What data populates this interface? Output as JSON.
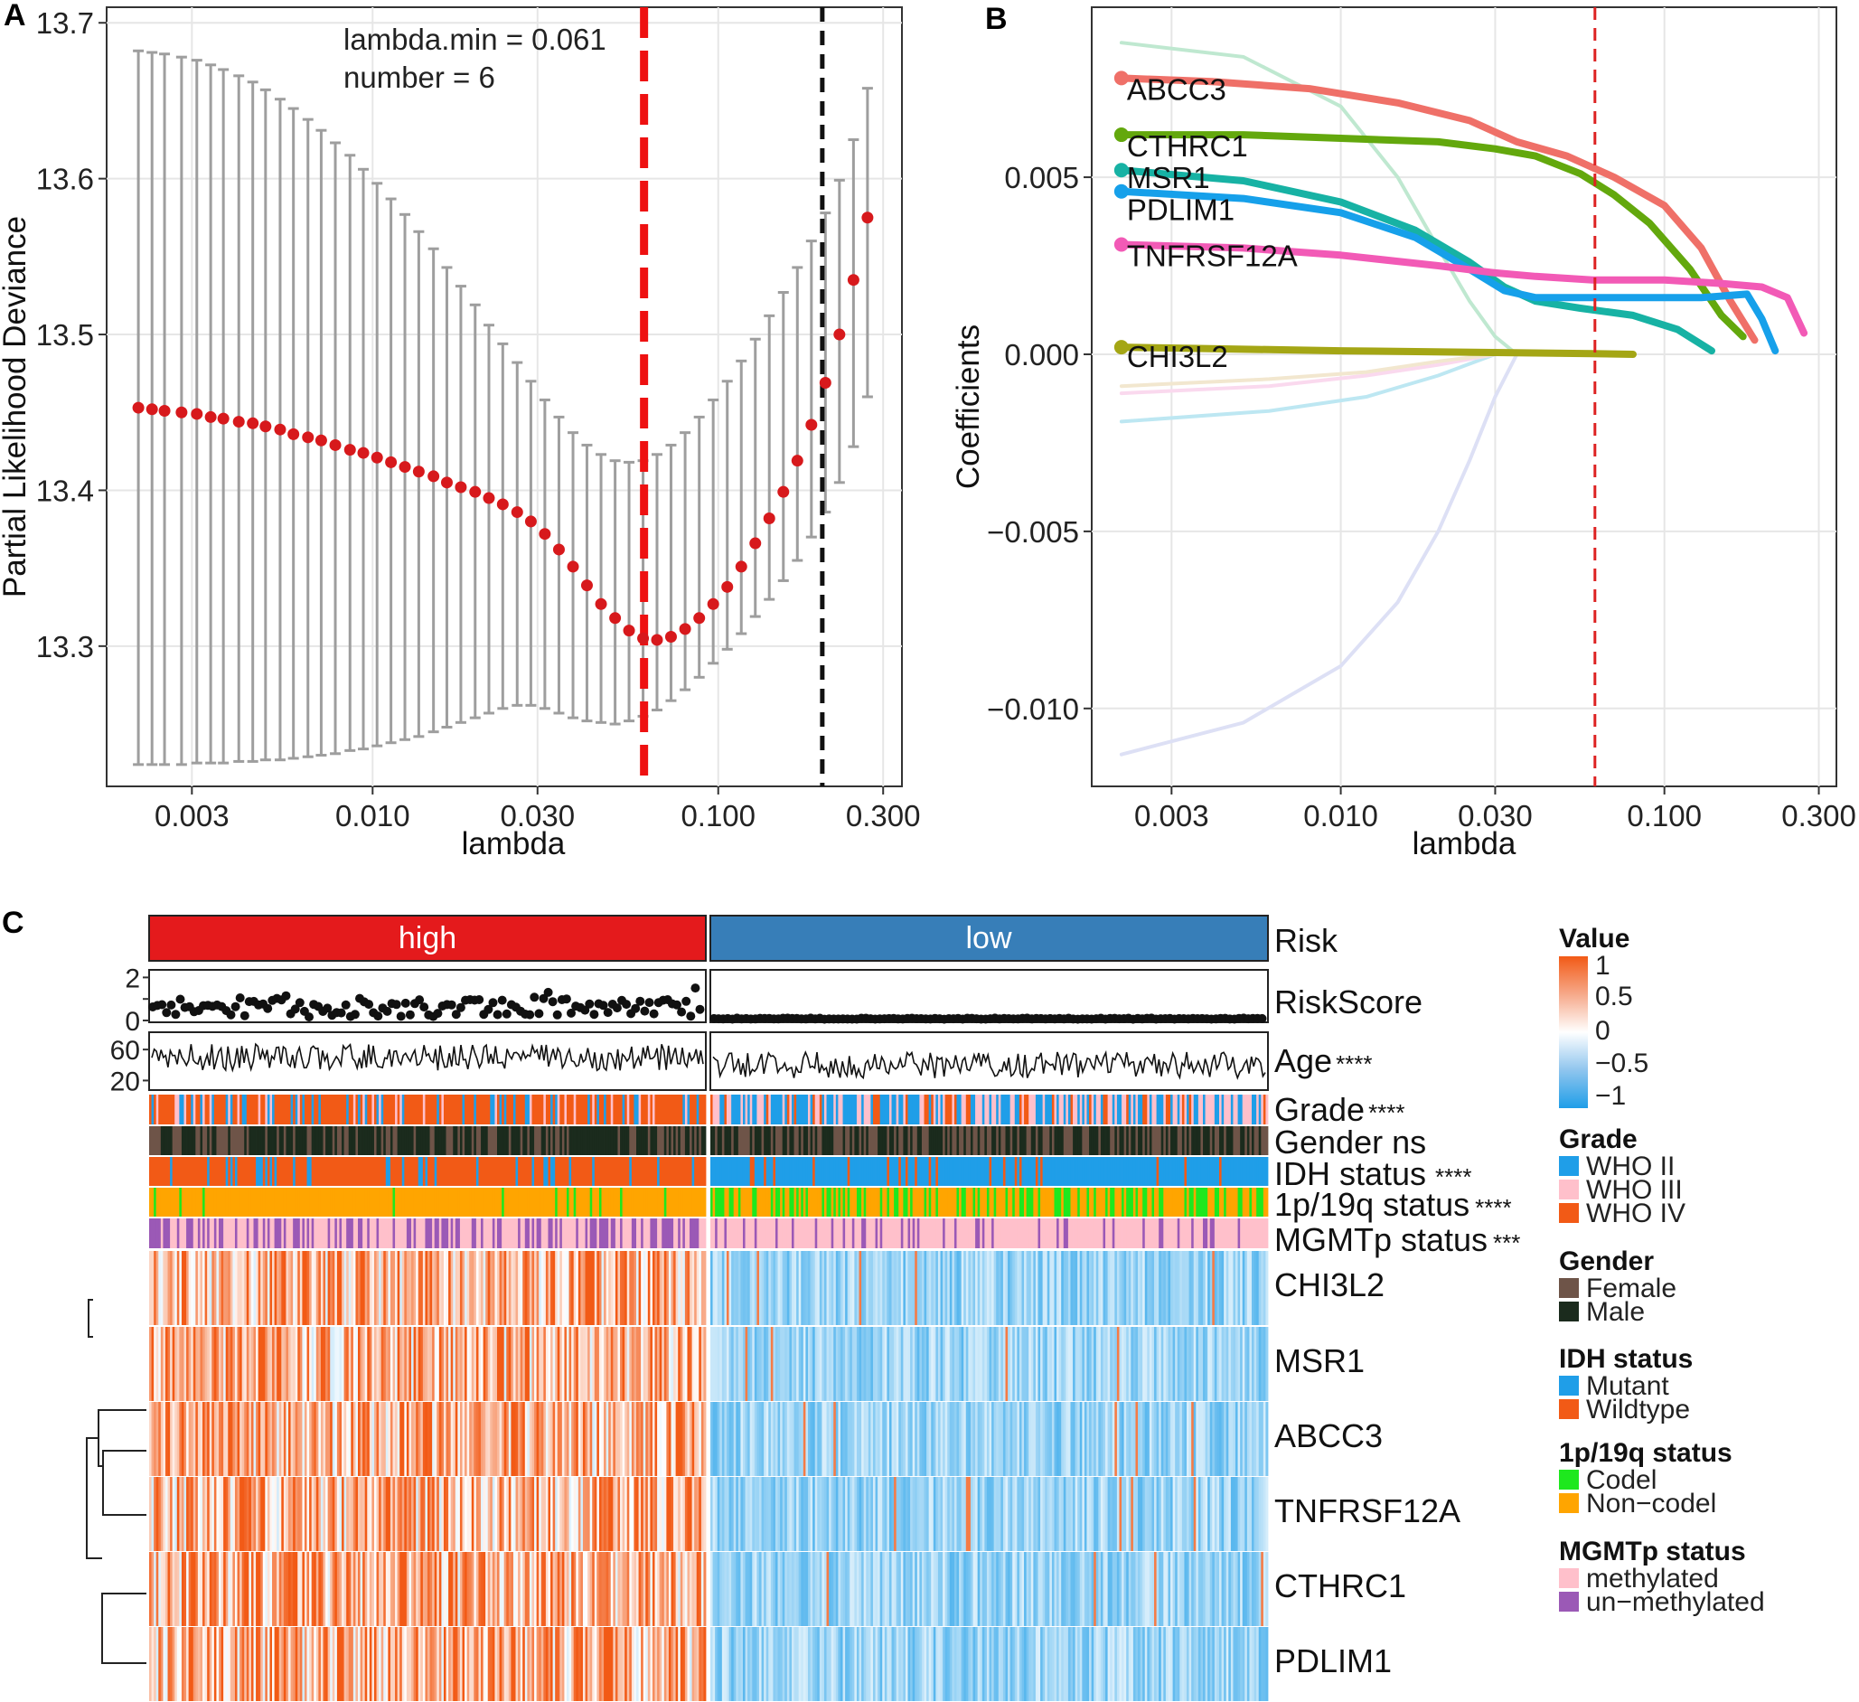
{
  "colors": {
    "risk_high": "#e41a1c",
    "risk_low": "#377eb8",
    "who2": "#1f9ee8",
    "who3": "#ffc0cb",
    "who4": "#f25a16",
    "female": "#6e5448",
    "male": "#1b2b1d",
    "mutant": "#1f9ee8",
    "wildtype": "#f25a16",
    "codel": "#1ee81e",
    "noncodel": "#ffa500",
    "methylated": "#ffc0cb",
    "unmethylated": "#9b59b6",
    "dot_red": "#d7191c",
    "err_grey": "#9e9e9e"
  },
  "panel_labels": {
    "a": "A",
    "b": "B",
    "c": "C"
  },
  "chart_data": [
    {
      "type": "scatter",
      "panel": "A",
      "xlabel": "lambda",
      "ylabel": "Partial Likelihood Deviance",
      "xscale": "log10",
      "xlim": [
        0.0017,
        0.34
      ],
      "ylim": [
        13.21,
        13.71
      ],
      "x_ticks": [
        0.003,
        0.01,
        0.03,
        0.1,
        0.3
      ],
      "x_tick_labels": [
        "0.003",
        "0.010",
        "0.030",
        "0.100",
        "0.300"
      ],
      "y_ticks": [
        13.3,
        13.4,
        13.5,
        13.6,
        13.7
      ],
      "y_tick_labels": [
        "13.3",
        "13.4",
        "13.5",
        "13.6",
        "13.7"
      ],
      "annotation_lines": [
        "lambda.min = 0.061",
        "number = 6"
      ],
      "vlines": [
        {
          "x": 0.061,
          "style": "dashed",
          "color": "#ee1111"
        },
        {
          "x": 0.2,
          "style": "dashed",
          "color": "#111111"
        }
      ],
      "lambda": [
        0.0021,
        0.0023,
        0.0025,
        0.0028,
        0.0031,
        0.0034,
        0.0037,
        0.0041,
        0.0045,
        0.0049,
        0.0054,
        0.0059,
        0.0065,
        0.0071,
        0.0078,
        0.0086,
        0.0094,
        0.0103,
        0.0113,
        0.0124,
        0.0136,
        0.015,
        0.0164,
        0.018,
        0.0198,
        0.0217,
        0.0238,
        0.0262,
        0.0287,
        0.0315,
        0.0346,
        0.038,
        0.0417,
        0.0458,
        0.0503,
        0.0552,
        0.0606,
        0.0665,
        0.073,
        0.0802,
        0.0881,
        0.0967,
        0.1062,
        0.1166,
        0.128,
        0.1405,
        0.1543,
        0.1694,
        0.186,
        0.2042,
        0.2242,
        0.2462,
        0.2703
      ],
      "mean": [
        13.453,
        13.452,
        13.451,
        13.45,
        13.449,
        13.447,
        13.446,
        13.444,
        13.443,
        13.441,
        13.439,
        13.436,
        13.434,
        13.432,
        13.429,
        13.426,
        13.424,
        13.421,
        13.418,
        13.415,
        13.412,
        13.409,
        13.405,
        13.402,
        13.399,
        13.395,
        13.391,
        13.386,
        13.38,
        13.372,
        13.362,
        13.351,
        13.339,
        13.327,
        13.318,
        13.31,
        13.305,
        13.304,
        13.306,
        13.311,
        13.318,
        13.327,
        13.338,
        13.351,
        13.366,
        13.382,
        13.399,
        13.419,
        13.442,
        13.469,
        13.5,
        13.535,
        13.575
      ],
      "upper": [
        13.682,
        13.681,
        13.68,
        13.678,
        13.676,
        13.673,
        13.67,
        13.666,
        13.662,
        13.657,
        13.651,
        13.645,
        13.638,
        13.631,
        13.623,
        13.615,
        13.606,
        13.597,
        13.587,
        13.577,
        13.566,
        13.555,
        13.543,
        13.531,
        13.519,
        13.506,
        13.494,
        13.482,
        13.47,
        13.458,
        13.447,
        13.437,
        13.429,
        13.423,
        13.419,
        13.418,
        13.419,
        13.423,
        13.429,
        13.437,
        13.447,
        13.458,
        13.47,
        13.483,
        13.497,
        13.512,
        13.527,
        13.543,
        13.56,
        13.578,
        13.599,
        13.625,
        13.658
      ],
      "lower": [
        13.224,
        13.224,
        13.224,
        13.224,
        13.225,
        13.225,
        13.225,
        13.226,
        13.226,
        13.227,
        13.227,
        13.228,
        13.229,
        13.23,
        13.231,
        13.233,
        13.234,
        13.236,
        13.238,
        13.24,
        13.242,
        13.245,
        13.248,
        13.251,
        13.254,
        13.257,
        13.26,
        13.262,
        13.262,
        13.26,
        13.257,
        13.254,
        13.252,
        13.251,
        13.25,
        13.252,
        13.255,
        13.259,
        13.265,
        13.272,
        13.28,
        13.289,
        13.298,
        13.308,
        13.319,
        13.33,
        13.342,
        13.355,
        13.37,
        13.386,
        13.405,
        13.428,
        13.46
      ]
    },
    {
      "type": "line",
      "panel": "B",
      "xlabel": "lambda",
      "ylabel": "Coefficients",
      "xscale": "log10",
      "xlim": [
        0.0017,
        0.34
      ],
      "ylim": [
        -0.0122,
        0.0098
      ],
      "x_ticks": [
        0.003,
        0.01,
        0.03,
        0.1,
        0.3
      ],
      "x_tick_labels": [
        "0.003",
        "0.010",
        "0.030",
        "0.100",
        "0.300"
      ],
      "y_ticks": [
        -0.01,
        -0.005,
        0.0,
        0.005
      ],
      "y_tick_labels": [
        "−0.010",
        "−0.005",
        "0.000",
        "0.005"
      ],
      "vline": {
        "x": 0.061,
        "color": "#dd2222"
      },
      "series": [
        {
          "name": "ABCC3",
          "color": "#ef7068",
          "x": [
            0.0021,
            0.004,
            0.008,
            0.015,
            0.025,
            0.035,
            0.05,
            0.07,
            0.1,
            0.13,
            0.16,
            0.19
          ],
          "values": [
            0.0078,
            0.0077,
            0.0075,
            0.0071,
            0.0066,
            0.006,
            0.0056,
            0.005,
            0.0042,
            0.003,
            0.0015,
            0.0004
          ]
        },
        {
          "name": "CTHRC1",
          "color": "#63a80d",
          "x": [
            0.0021,
            0.005,
            0.01,
            0.02,
            0.03,
            0.04,
            0.055,
            0.07,
            0.09,
            0.12,
            0.15,
            0.175
          ],
          "values": [
            0.0062,
            0.0062,
            0.0061,
            0.006,
            0.0058,
            0.0056,
            0.0051,
            0.0045,
            0.0037,
            0.0024,
            0.0011,
            0.0005
          ]
        },
        {
          "name": "MSR1",
          "color": "#17b2a4",
          "x": [
            0.0021,
            0.005,
            0.01,
            0.017,
            0.025,
            0.032,
            0.04,
            0.055,
            0.08,
            0.11,
            0.14
          ],
          "values": [
            0.0052,
            0.0049,
            0.0043,
            0.0035,
            0.0026,
            0.0019,
            0.0015,
            0.0013,
            0.0011,
            0.0007,
            0.0001
          ]
        },
        {
          "name": "PDLIM1",
          "color": "#16a0ea",
          "x": [
            0.0021,
            0.005,
            0.01,
            0.017,
            0.025,
            0.032,
            0.04,
            0.06,
            0.09,
            0.13,
            0.18,
            0.2,
            0.22
          ],
          "values": [
            0.0046,
            0.0044,
            0.004,
            0.0033,
            0.0024,
            0.0018,
            0.0016,
            0.0016,
            0.0016,
            0.0016,
            0.0017,
            0.001,
            0.0001
          ]
        },
        {
          "name": "TNFRSF12A",
          "color": "#f25ab6",
          "x": [
            0.0021,
            0.005,
            0.01,
            0.02,
            0.03,
            0.04,
            0.06,
            0.1,
            0.15,
            0.2,
            0.24,
            0.27
          ],
          "values": [
            0.0031,
            0.003,
            0.0028,
            0.0025,
            0.0023,
            0.0022,
            0.0021,
            0.0021,
            0.002,
            0.0019,
            0.0016,
            0.0006
          ]
        },
        {
          "name": "CHI3L2",
          "color": "#a4a615",
          "x": [
            0.0021,
            0.01,
            0.03,
            0.06,
            0.08
          ],
          "values": [
            0.0002,
            0.0001,
            5e-05,
            2e-05,
            0.0
          ]
        }
      ],
      "shrunk_series": [
        {
          "color": "#bfe8d0",
          "x": [
            0.0021,
            0.005,
            0.01,
            0.015,
            0.02,
            0.025,
            0.03,
            0.035
          ],
          "values": [
            0.0088,
            0.0084,
            0.007,
            0.005,
            0.003,
            0.0015,
            0.0005,
            0.0
          ]
        },
        {
          "color": "#dde0f5",
          "x": [
            0.0021,
            0.005,
            0.01,
            0.015,
            0.02,
            0.025,
            0.03,
            0.035
          ],
          "values": [
            -0.0113,
            -0.0104,
            -0.0088,
            -0.007,
            -0.005,
            -0.003,
            -0.0012,
            0.0
          ]
        },
        {
          "color": "#bde7f2",
          "x": [
            0.0021,
            0.006,
            0.012,
            0.02,
            0.03
          ],
          "values": [
            -0.0019,
            -0.0016,
            -0.0012,
            -0.0006,
            0.0
          ]
        },
        {
          "color": "#fad9ee",
          "x": [
            0.0021,
            0.006,
            0.012,
            0.02,
            0.03
          ],
          "values": [
            -0.0011,
            -0.0009,
            -0.0006,
            -0.0003,
            0.0
          ]
        },
        {
          "color": "#f2e7cf",
          "x": [
            0.0021,
            0.006,
            0.012,
            0.02,
            0.03
          ],
          "values": [
            -0.0009,
            -0.0007,
            -0.0005,
            -0.0002,
            0.0
          ]
        }
      ]
    },
    {
      "type": "heatmap",
      "panel": "C",
      "groups": [
        {
          "name": "high",
          "n": 240
        },
        {
          "name": "low",
          "n": 240
        }
      ],
      "rows": [
        "CHI3L2",
        "MSR1",
        "ABCC3",
        "TNFRSF12A",
        "CTHRC1",
        "PDLIM1"
      ],
      "annotation_rows": [
        {
          "name": "Risk",
          "sig": ""
        },
        {
          "name": "RiskScore",
          "sig": ""
        },
        {
          "name": "Age",
          "sig": "****"
        },
        {
          "name": "Grade",
          "sig": "****"
        },
        {
          "name": "Gender",
          "sig": "ns"
        },
        {
          "name": "IDH status",
          "sig": "****"
        },
        {
          "name": "1p/19q status",
          "sig": "****"
        },
        {
          "name": "MGMTp status",
          "sig": "***"
        }
      ],
      "riskscore_axis": {
        "ticks": [
          0,
          1,
          2
        ],
        "labels": [
          "0",
          "",
          "2"
        ]
      },
      "age_axis": {
        "ticks": [
          20,
          60
        ],
        "labels": [
          "20",
          "60"
        ]
      },
      "composition": {
        "high": {
          "grade": [
            0.2,
            0.1,
            0.7
          ],
          "male": 0.6,
          "wildtype": 0.8,
          "codel": 0.05,
          "methylated": 0.5,
          "riskscore_mean": 0.6,
          "age_mean": 50
        },
        "low": {
          "grade": [
            0.5,
            0.35,
            0.15
          ],
          "male": 0.55,
          "wildtype": 0.12,
          "codel": 0.4,
          "methylated": 0.8,
          "riskscore_mean": 0.08,
          "age_mean": 40
        }
      },
      "value_range": [
        -1,
        1
      ],
      "legend": {
        "value": {
          "title": "Value",
          "labels": [
            "1",
            "0.5",
            "0",
            "−0.5",
            "−1"
          ]
        },
        "grade": {
          "title": "Grade",
          "items": [
            "WHO II",
            "WHO III",
            "WHO IV"
          ]
        },
        "gender": {
          "title": "Gender",
          "items": [
            "Female",
            "Male"
          ]
        },
        "idh": {
          "title": "IDH status",
          "items": [
            "Mutant",
            "Wildtype"
          ]
        },
        "codel": {
          "title": "1p/19q status",
          "items": [
            "Codel",
            "Non−codel"
          ]
        },
        "mgmt": {
          "title": "MGMTp status",
          "items": [
            "methylated",
            "un−methylated"
          ]
        }
      }
    }
  ]
}
